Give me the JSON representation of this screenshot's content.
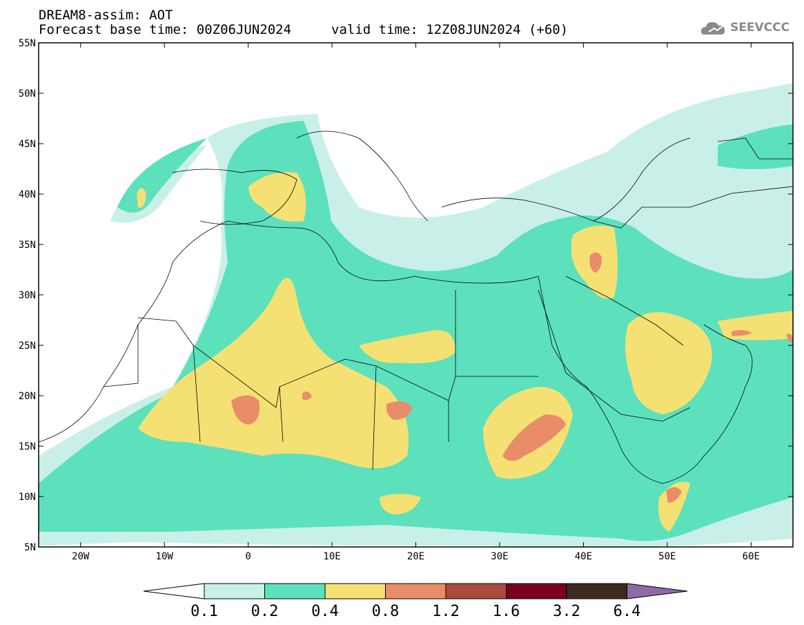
{
  "header": {
    "title": "DREAM8-assim: AOT",
    "base_time": "Forecast base time: 00Z06JUN2024",
    "valid_time": "valid time: 12Z08JUN2024 (+60)"
  },
  "logo": {
    "text": "SEEVCCC",
    "icon": "cloud-logo-icon"
  },
  "map": {
    "lat_labels": [
      "55N",
      "50N",
      "45N",
      "40N",
      "35N",
      "30N",
      "25N",
      "20N",
      "15N",
      "10N",
      "5N"
    ],
    "lon_labels": [
      "20W",
      "10W",
      "0",
      "10E",
      "20E",
      "30E",
      "40E",
      "50E",
      "60E"
    ],
    "lat_range": [
      5,
      55
    ],
    "lon_range": [
      -25,
      65
    ]
  },
  "colorbar": {
    "labels": [
      "0.1",
      "0.2",
      "0.4",
      "0.8",
      "1.2",
      "1.6",
      "3.2",
      "6.4"
    ],
    "colors": [
      "#ffffff",
      "#c8f0e8",
      "#5ce1bc",
      "#f5e173",
      "#e98c6a",
      "#a84d3b",
      "#7a0022",
      "#3d2b1f",
      "#8e6aa8"
    ]
  }
}
